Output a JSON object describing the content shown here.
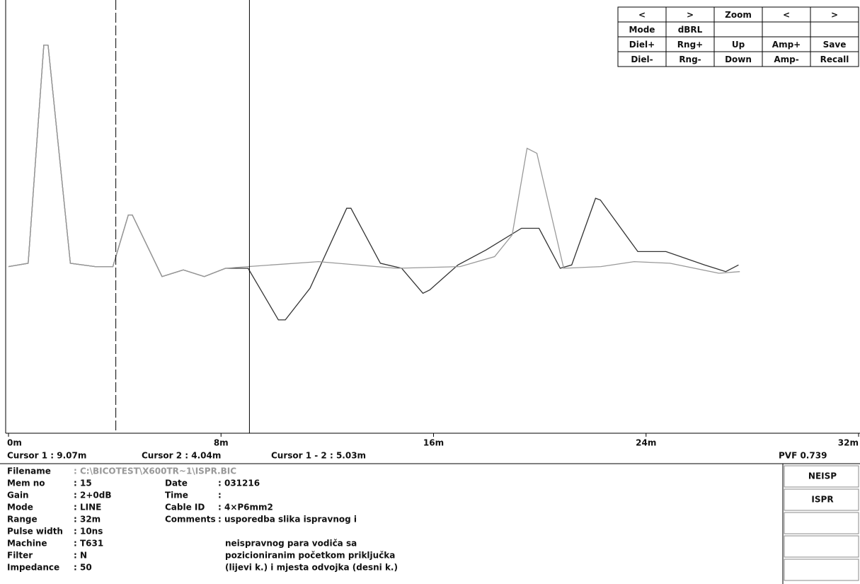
{
  "toolbar": {
    "rows": [
      [
        "<",
        ">",
        "Zoom",
        "<",
        ">"
      ],
      [
        "Mode",
        "dBRL",
        null,
        null,
        null
      ],
      [
        "Diel+",
        "Rng+",
        "Up",
        "Amp+",
        "Save"
      ],
      [
        "Diel-",
        "Rng-",
        "Down",
        "Amp-",
        "Recall"
      ]
    ]
  },
  "chart_data": {
    "type": "line",
    "xlim": [
      0,
      32
    ],
    "ylim": [
      -1,
      1.6
    ],
    "xticks": [
      {
        "value": 0,
        "label": "0m"
      },
      {
        "value": 8,
        "label": "8m"
      },
      {
        "value": 16,
        "label": "16m"
      },
      {
        "value": 24,
        "label": "24m"
      },
      {
        "value": 32,
        "label": "32m"
      }
    ],
    "series": [
      {
        "color": "#333333",
        "x": [
          0,
          0.74,
          1.33,
          1.49,
          2.33,
          3.26,
          3.93,
          4.51,
          4.66,
          5.78,
          6.58,
          7.37,
          8.17,
          9.02,
          10.16,
          10.42,
          11.35,
          12.73,
          12.89,
          14.0,
          14.8,
          15.6,
          15.86,
          16.92,
          17.98,
          19.31,
          19.97,
          20.77,
          21.2,
          22.1,
          22.28,
          23.69,
          24.75,
          26.2,
          27.0,
          27.48
        ],
        "values": [
          0,
          0.02,
          1.33,
          1.33,
          0.02,
          0,
          0,
          0.31,
          0.31,
          -0.06,
          -0.02,
          -0.06,
          -0.01,
          -0.01,
          -0.32,
          -0.32,
          -0.13,
          0.35,
          0.35,
          0.02,
          -0.01,
          -0.16,
          -0.14,
          0.01,
          0.1,
          0.23,
          0.23,
          -0.01,
          0.01,
          0.41,
          0.4,
          0.09,
          0.09,
          0.01,
          -0.03,
          0.01
        ]
      },
      {
        "color": "#999999",
        "x": [
          0,
          0.74,
          1.33,
          1.49,
          2.33,
          3.26,
          3.93,
          4.51,
          4.66,
          5.78,
          6.58,
          7.37,
          8.17,
          9.02,
          11.67,
          14.6,
          17.0,
          18.3,
          18.96,
          19.52,
          19.89,
          20.9,
          22.3,
          23.55,
          24.9,
          26.74,
          27.53
        ],
        "values": [
          0,
          0.02,
          1.33,
          1.33,
          0.02,
          0,
          0,
          0.31,
          0.31,
          -0.06,
          -0.02,
          -0.06,
          -0.01,
          0,
          0.03,
          -0.01,
          0,
          0.06,
          0.19,
          0.71,
          0.68,
          -0.01,
          0,
          0.03,
          0.02,
          -0.04,
          -0.03
        ]
      }
    ],
    "cursors": [
      {
        "x": 9.07,
        "style": "solid"
      },
      {
        "x": 4.04,
        "style": "dashed"
      }
    ]
  },
  "cursor_info": [
    "Cursor 1 : 9.07m",
    "Cursor 2 : 4.04m",
    "Cursor 1 - 2 : 5.03m",
    "PVF 0.739"
  ],
  "info_left": [
    [
      "Filename",
      ": C:\\BICOTEST\\X600TR~1\\ISPR.BIC"
    ],
    [
      "Mem no",
      ": 15"
    ],
    [
      "Gain",
      ": 2+0dB"
    ],
    [
      "Mode",
      ": LINE"
    ],
    [
      "Range",
      ": 32m"
    ],
    [
      "Pulse width",
      ": 10ns"
    ],
    [
      "Machine",
      ": T631"
    ],
    [
      "Filter",
      ": N"
    ],
    [
      "Impedance",
      ": 50"
    ]
  ],
  "info_mid": [
    [
      "Date",
      ": 031216"
    ],
    [
      "Time",
      ":"
    ],
    [
      "Cable ID",
      ": 4×P6mm2"
    ],
    [
      "Comments",
      ": usporedba slika ispravnog i"
    ]
  ],
  "comment_more": [
    "neispravnog para vodiča sa",
    "pozicioniranim početkom priključka",
    "(lijevi k.) i mjesta odvojka (desni k.)"
  ],
  "side_buttons": [
    "NEISP",
    "ISPR"
  ]
}
